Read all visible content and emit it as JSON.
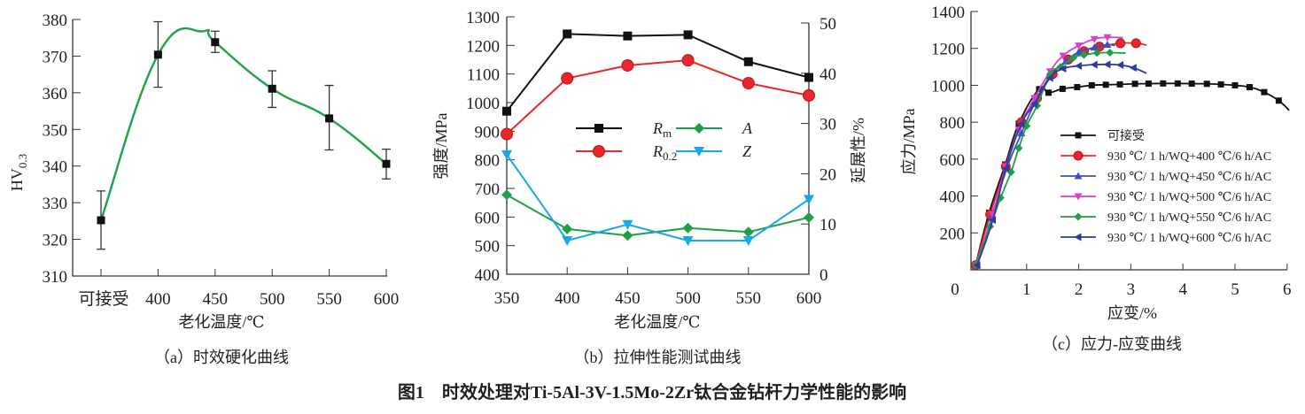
{
  "figure_title": "图1　时效处理对Ti-5Al-3V-1.5Mo-2Zr钛合金钻杆力学性能的影响",
  "chart_data": [
    {
      "type": "line",
      "caption": "（a）时效硬化曲线",
      "xlabel": "老化温度/℃",
      "ylabel": "HV",
      "ylabel_sub": "0.3",
      "categories": [
        "可接受",
        "400",
        "450",
        "500",
        "550",
        "600"
      ],
      "ylim": [
        310,
        380
      ],
      "yticks": [
        310,
        320,
        330,
        340,
        350,
        360,
        370,
        380
      ],
      "values": [
        325.2,
        370.4,
        373.8,
        361.1,
        353.0,
        340.6
      ],
      "error_low": [
        317.3,
        361.5,
        371.0,
        356.0,
        344.4,
        336.5
      ],
      "error_high": [
        333.2,
        379.4,
        376.8,
        366.0,
        362.0,
        344.6
      ],
      "line_color": "#1aa34a",
      "marker_color": "#111111",
      "smooth": true
    },
    {
      "type": "line",
      "caption": "（b）拉伸性能测试曲线",
      "xlabel": "老化温度/℃",
      "ylabel_left": "强度/MPa",
      "ylabel_right": "延展性/%",
      "x": [
        350,
        400,
        450,
        500,
        550,
        600
      ],
      "xlim": [
        350,
        600
      ],
      "ylim_left": [
        400,
        1300
      ],
      "ylim_right": [
        0,
        50
      ],
      "yticks_left": [
        400,
        500,
        600,
        700,
        800,
        900,
        1000,
        1100,
        1200,
        1300
      ],
      "yticks_right": [
        0,
        10,
        20,
        30,
        40,
        50
      ],
      "xticks": [
        350,
        400,
        450,
        500,
        550,
        600
      ],
      "legend_placement": "center",
      "series": [
        {
          "name": "R",
          "sub": "m",
          "axis": "left",
          "marker": "square",
          "color": "#111111",
          "values": [
            970,
            1240,
            1233,
            1237,
            1143,
            1088
          ]
        },
        {
          "name": "R",
          "sub": "0.2",
          "axis": "left",
          "marker": "circle",
          "color": "#e8262b",
          "values": [
            890,
            1085,
            1130,
            1148,
            1068,
            1025
          ]
        },
        {
          "name": "A",
          "sub": "",
          "axis": "right",
          "marker": "diamond",
          "color": "#1f9e46",
          "values": [
            15.8,
            9.0,
            7.7,
            9.2,
            8.4,
            11.3
          ]
        },
        {
          "name": "Z",
          "sub": "",
          "axis": "right",
          "marker": "triangle-down",
          "color": "#18a8e6",
          "values": [
            23.8,
            6.7,
            9.9,
            6.7,
            6.7,
            14.9
          ]
        }
      ]
    },
    {
      "type": "line",
      "caption": "（c）应力-应变曲线",
      "xlabel": "应变/%",
      "ylabel": "应力/MPa",
      "xlim": [
        0,
        6
      ],
      "ylim": [
        0,
        1400
      ],
      "xticks": [
        0,
        1,
        2,
        3,
        4,
        5,
        6
      ],
      "yticks": [
        200,
        400,
        600,
        800,
        1000,
        1200,
        1400
      ],
      "legend_placement": "center-right",
      "series": [
        {
          "name": "可接受",
          "marker": "square",
          "color": "#111111",
          "points": [
            [
              0.02,
              25
            ],
            [
              0.28,
              309
            ],
            [
              0.59,
              571
            ],
            [
              0.85,
              792
            ],
            [
              1.24,
              979
            ],
            [
              1.42,
              960
            ],
            [
              1.69,
              981
            ],
            [
              1.97,
              990
            ],
            [
              2.25,
              1000
            ],
            [
              2.52,
              1003
            ],
            [
              2.79,
              1005
            ],
            [
              3.08,
              1008
            ],
            [
              3.34,
              1009
            ],
            [
              3.62,
              1010
            ],
            [
              3.9,
              1010
            ],
            [
              4.17,
              1009
            ],
            [
              4.46,
              1008
            ],
            [
              4.73,
              1005
            ],
            [
              5.0,
              1000
            ],
            [
              5.28,
              990
            ],
            [
              5.56,
              963
            ],
            [
              5.84,
              917
            ],
            [
              6.04,
              864
            ]
          ]
        },
        {
          "name": "930 ℃/ 1 h/WQ+400 ℃/6 h/AC",
          "marker": "circle",
          "color": "#e8262b",
          "points": [
            [
              0.02,
              25
            ],
            [
              0.3,
              300
            ],
            [
              0.6,
              560
            ],
            [
              0.9,
              800
            ],
            [
              1.2,
              930
            ],
            [
              1.5,
              1060
            ],
            [
              1.8,
              1140
            ],
            [
              2.1,
              1185
            ],
            [
              2.4,
              1210
            ],
            [
              2.8,
              1228
            ],
            [
              3.1,
              1228
            ],
            [
              3.3,
              1218
            ]
          ]
        },
        {
          "name": "930 ℃/ 1 h/WQ+450 ℃/6 h/AC",
          "marker": "triangle-up",
          "color": "#3b4fbf",
          "points": [
            [
              0.05,
              25
            ],
            [
              0.32,
              280
            ],
            [
              0.62,
              550
            ],
            [
              0.9,
              740
            ],
            [
              1.15,
              900
            ],
            [
              1.45,
              1050
            ],
            [
              1.75,
              1130
            ],
            [
              2.0,
              1180
            ],
            [
              2.3,
              1205
            ],
            [
              2.55,
              1220
            ],
            [
              2.7,
              1215
            ]
          ]
        },
        {
          "name": "930 ℃/ 1 h/WQ+500 ℃/6 h/AC",
          "marker": "triangle-down",
          "color": "#d63fd0",
          "points": [
            [
              0.02,
              25
            ],
            [
              0.35,
              300
            ],
            [
              0.6,
              560
            ],
            [
              0.85,
              760
            ],
            [
              1.15,
              930
            ],
            [
              1.45,
              1075
            ],
            [
              1.7,
              1160
            ],
            [
              2.0,
              1215
            ],
            [
              2.3,
              1250
            ],
            [
              2.55,
              1260
            ],
            [
              2.85,
              1258
            ]
          ]
        },
        {
          "name": "930 ℃/ 1 h/WQ+550 ℃/6 h/AC",
          "marker": "diamond",
          "color": "#1f9e46",
          "points": [
            [
              0.02,
              25
            ],
            [
              0.3,
              235
            ],
            [
              0.5,
              390
            ],
            [
              0.7,
              530
            ],
            [
              0.85,
              660
            ],
            [
              1.0,
              780
            ],
            [
              1.2,
              890
            ],
            [
              1.45,
              1060
            ],
            [
              1.65,
              1100
            ],
            [
              1.9,
              1150
            ],
            [
              2.1,
              1165
            ],
            [
              2.35,
              1175
            ],
            [
              2.6,
              1177
            ],
            [
              2.9,
              1175
            ]
          ]
        },
        {
          "name": "930 ℃/ 1 h/WQ+600 ℃/6 h/AC",
          "marker": "triangle-left",
          "color": "#2f3a9e",
          "points": [
            [
              0.05,
              25
            ],
            [
              0.35,
              270
            ],
            [
              0.6,
              550
            ],
            [
              0.9,
              790
            ],
            [
              1.15,
              900
            ],
            [
              1.45,
              1040
            ],
            [
              1.7,
              1090
            ],
            [
              2.0,
              1105
            ],
            [
              2.3,
              1112
            ],
            [
              2.55,
              1113
            ],
            [
              2.8,
              1110
            ],
            [
              3.05,
              1095
            ],
            [
              3.3,
              1065
            ]
          ]
        }
      ]
    }
  ]
}
